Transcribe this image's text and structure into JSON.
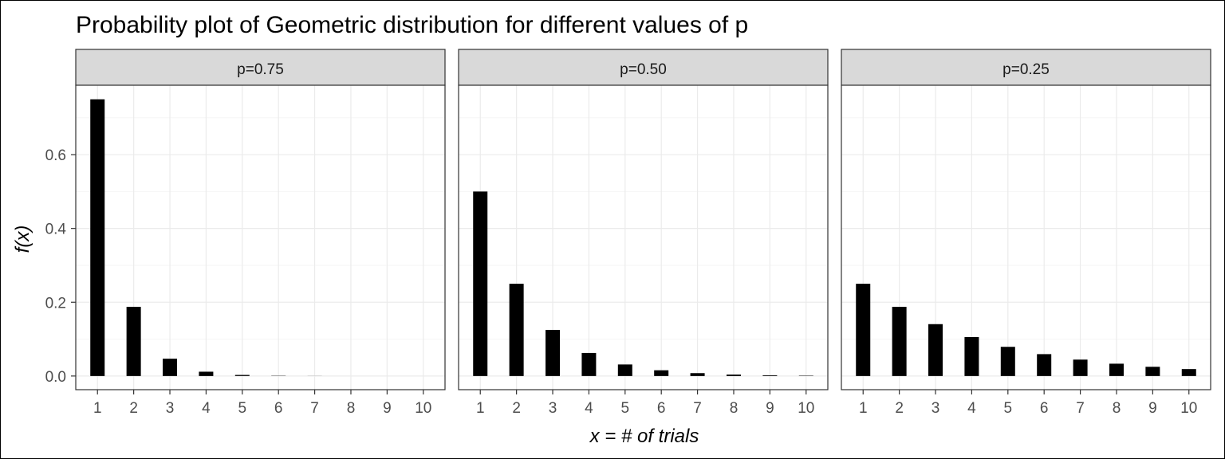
{
  "chart_data": {
    "type": "bar",
    "title": "Probability plot of Geometric distribution for different values of p",
    "xlabel": "x = # of trials",
    "ylabel": "f(x)",
    "x": [
      1,
      2,
      3,
      4,
      5,
      6,
      7,
      8,
      9,
      10
    ],
    "xlim": [
      0.4,
      10.6
    ],
    "ylim": [
      -0.037,
      0.788
    ],
    "yticks": [
      0.0,
      0.2,
      0.4,
      0.6
    ],
    "ytick_labels": [
      "0.0",
      "0.2",
      "0.4",
      "0.6"
    ],
    "grid": true,
    "legend": "none",
    "bar_color": "#000000",
    "strip_color": "#d9d9d9",
    "grid_major_color": "#ebebeb",
    "grid_minor_color": "#f5f5f5",
    "panels": [
      {
        "label": "p=0.75",
        "values": [
          0.75,
          0.1875,
          0.0469,
          0.0117,
          0.0029,
          0.0007,
          0.0002,
          0.0,
          0.0,
          0.0
        ]
      },
      {
        "label": "p=0.50",
        "values": [
          0.5,
          0.25,
          0.125,
          0.0625,
          0.0313,
          0.0156,
          0.0078,
          0.0039,
          0.002,
          0.001
        ]
      },
      {
        "label": "p=0.25",
        "values": [
          0.25,
          0.1875,
          0.1406,
          0.1055,
          0.0791,
          0.0593,
          0.0445,
          0.0334,
          0.025,
          0.0188
        ]
      }
    ]
  }
}
